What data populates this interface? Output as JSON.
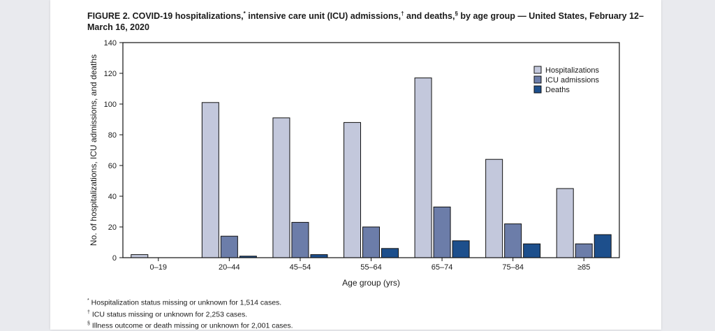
{
  "figure": {
    "title_main": "FIGURE 2. COVID-19 hospitalizations,",
    "mark_hosp": "*",
    "title_mid1": " intensive care unit (ICU) admissions,",
    "mark_icu": "†",
    "title_mid2": " and deaths,",
    "mark_death": "§",
    "title_end": " by age group — United States, February 12–March 16, 2020"
  },
  "footnotes": [
    {
      "mark": "*",
      "text": " Hospitalization status missing or unknown for 1,514 cases."
    },
    {
      "mark": "†",
      "text": " ICU status missing or unknown for 2,253 cases."
    },
    {
      "mark": "§",
      "text": " Illness outcome or death missing or unknown for 2,001 cases."
    }
  ],
  "colors": {
    "hospitalizations": "#c3c8dc",
    "icu": "#6c7da9",
    "deaths": "#1d4f8c",
    "outline": "#111111"
  },
  "chart_data": {
    "type": "bar",
    "categories": [
      "0–19",
      "20–44",
      "45–54",
      "55–64",
      "65–74",
      "75–84",
      "≥85"
    ],
    "series": [
      {
        "name": "Hospitalizations",
        "values": [
          2,
          101,
          91,
          88,
          117,
          64,
          45
        ]
      },
      {
        "name": "ICU admissions",
        "values": [
          0,
          14,
          23,
          20,
          33,
          22,
          9
        ]
      },
      {
        "name": "Deaths",
        "values": [
          0,
          1,
          2,
          6,
          11,
          9,
          15
        ]
      }
    ],
    "xlabel": "Age group (yrs)",
    "ylabel": "No. of hospitalizations, ICU admissions, and deaths",
    "ylim": [
      0,
      140
    ],
    "yticks": [
      0,
      20,
      40,
      60,
      80,
      100,
      120,
      140
    ],
    "grid": false,
    "legend_position": "top-right"
  }
}
